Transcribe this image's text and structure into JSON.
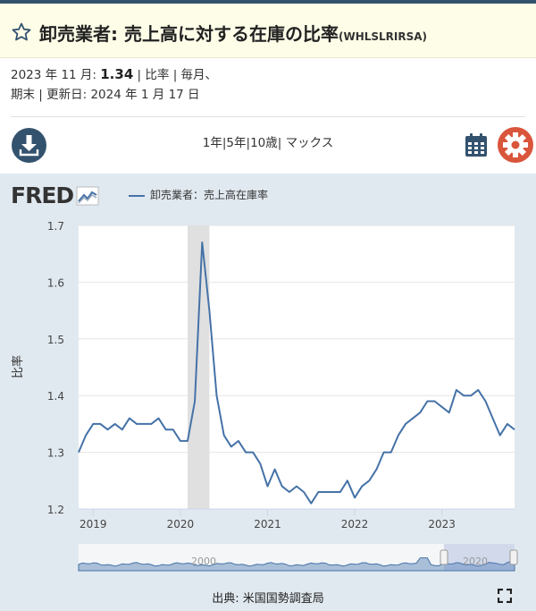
{
  "header": {
    "title": "卸売業者: 売上高に対する在庫の比率",
    "series_code": "(WHLSLRIRSA)"
  },
  "meta": {
    "period_prefix": "2023 年 11 月: ",
    "value": "1.34",
    "line1_rest": " | 比率 | 毎月、",
    "line2": "期末 | 更新日: 2024 年 1 月 17 日"
  },
  "ranges": [
    "1年",
    "5年",
    "10歳",
    "マックス"
  ],
  "icons": {
    "favorite": "star-icon",
    "download": "download-icon",
    "calendar": "calendar-icon",
    "settings": "gear-icon",
    "fullscreen": "fullscreen-icon"
  },
  "colors": {
    "line": "#4572a7",
    "recession": "#e0e0e0",
    "chart_bg": "#e1e9f0",
    "header_bg": "#fefde8",
    "accent_dark": "#33526e",
    "accent_red": "#d9553b"
  },
  "brand": "FRED",
  "source": "出典: 米国国勢調査局",
  "chart_data": {
    "type": "line",
    "series": [
      {
        "name": "卸売業者：売上高在庫率",
        "x_start": "2018-11",
        "frequency": "monthly",
        "values": [
          1.3,
          1.33,
          1.35,
          1.35,
          1.34,
          1.35,
          1.34,
          1.36,
          1.35,
          1.35,
          1.35,
          1.36,
          1.34,
          1.34,
          1.32,
          1.32,
          1.39,
          1.67,
          1.55,
          1.4,
          1.33,
          1.31,
          1.32,
          1.3,
          1.3,
          1.28,
          1.24,
          1.27,
          1.24,
          1.23,
          1.24,
          1.23,
          1.21,
          1.23,
          1.23,
          1.23,
          1.23,
          1.25,
          1.22,
          1.24,
          1.25,
          1.27,
          1.3,
          1.3,
          1.33,
          1.35,
          1.36,
          1.37,
          1.39,
          1.39,
          1.38,
          1.37,
          1.41,
          1.4,
          1.4,
          1.41,
          1.39,
          1.36,
          1.33,
          1.35,
          1.34
        ]
      }
    ],
    "ylabel": "比率",
    "ylim": [
      1.2,
      1.7
    ],
    "yticks": [
      "1.2",
      "1.3",
      "1.4",
      "1.5",
      "1.6",
      "1.7"
    ],
    "xticks": [
      "2019",
      "2020",
      "2021",
      "2022",
      "2023"
    ],
    "recession": {
      "start": "2020-02",
      "end": "2020-04"
    },
    "navigator_labels": [
      "2000",
      "2020"
    ],
    "grid": true,
    "legend_position": "top-left"
  }
}
